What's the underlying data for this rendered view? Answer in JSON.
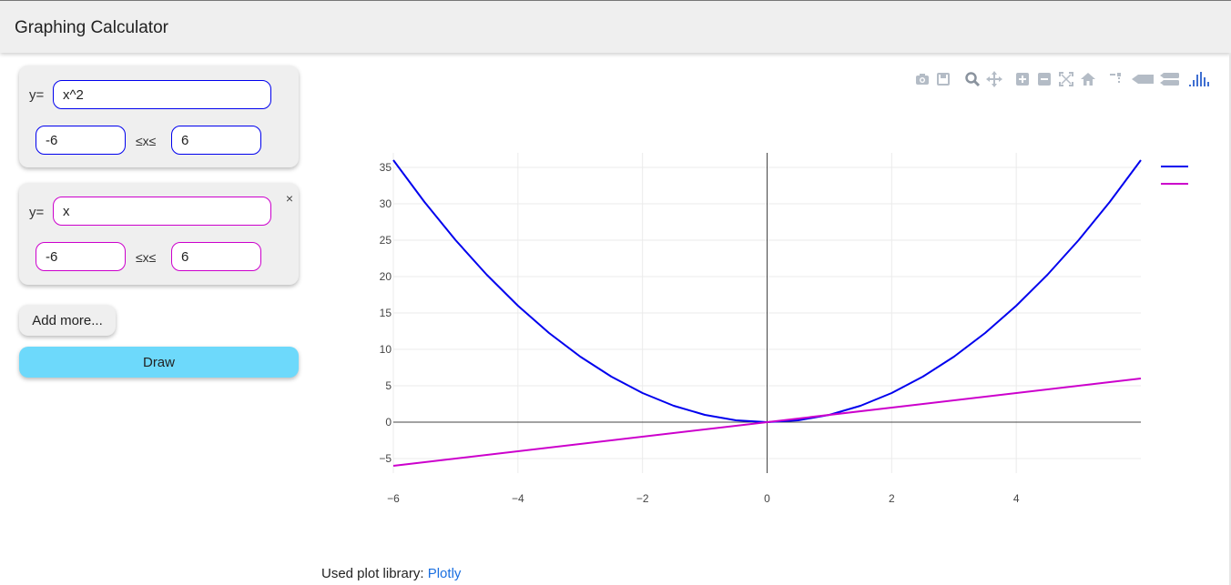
{
  "header": {
    "title": "Graphing Calculator"
  },
  "functions": [
    {
      "y_label": "y=",
      "expression": "x^2",
      "x_min": "-6",
      "range_label": "≤x≤",
      "x_max": "6",
      "color": "#0000ee",
      "removable": false
    },
    {
      "y_label": "y=",
      "expression": "x",
      "x_min": "-6",
      "range_label": "≤x≤",
      "x_max": "6",
      "color": "#cc00cc",
      "removable": true,
      "close_symbol": "×"
    }
  ],
  "buttons": {
    "add_more": "Add more...",
    "draw": "Draw"
  },
  "modebar": {
    "icons": [
      "camera-icon",
      "save-icon",
      "zoom-icon",
      "pan-icon",
      "zoom-in-icon",
      "zoom-out-icon",
      "autoscale-icon",
      "home-icon",
      "spike-lines-icon",
      "hover-closest-icon",
      "hover-compare-icon",
      "plotly-logo-icon"
    ]
  },
  "footer": {
    "text": "Used plot library: ",
    "link_text": "Plotly"
  },
  "chart_data": {
    "type": "line",
    "title": "",
    "xlabel": "",
    "ylabel": "",
    "xlim": [
      -6,
      6
    ],
    "ylim": [
      -7,
      37
    ],
    "xticks": [
      -6,
      -4,
      -2,
      0,
      2,
      4
    ],
    "xtick_labels": [
      "−6",
      "−4",
      "−2",
      "0",
      "2",
      "4"
    ],
    "yticks": [
      -5,
      0,
      5,
      10,
      15,
      20,
      25,
      30,
      35
    ],
    "ytick_labels": [
      "−5",
      "0",
      "5",
      "10",
      "15",
      "20",
      "25",
      "30",
      "35"
    ],
    "grid": true,
    "legend_placement": "top-right",
    "series": [
      {
        "color": "#0000ee",
        "x": [
          -6,
          -5.5,
          -5,
          -4.5,
          -4,
          -3.5,
          -3,
          -2.5,
          -2,
          -1.5,
          -1,
          -0.5,
          0,
          0.5,
          1,
          1.5,
          2,
          2.5,
          3,
          3.5,
          4,
          4.5,
          5,
          5.5,
          6
        ],
        "y": [
          36,
          30.25,
          25,
          20.25,
          16,
          12.25,
          9,
          6.25,
          4,
          2.25,
          1,
          0.25,
          0,
          0.25,
          1,
          2.25,
          4,
          6.25,
          9,
          12.25,
          16,
          20.25,
          25,
          30.25,
          36
        ]
      },
      {
        "color": "#cc00cc",
        "x": [
          -6,
          6
        ],
        "y": [
          -6,
          6
        ]
      }
    ]
  }
}
